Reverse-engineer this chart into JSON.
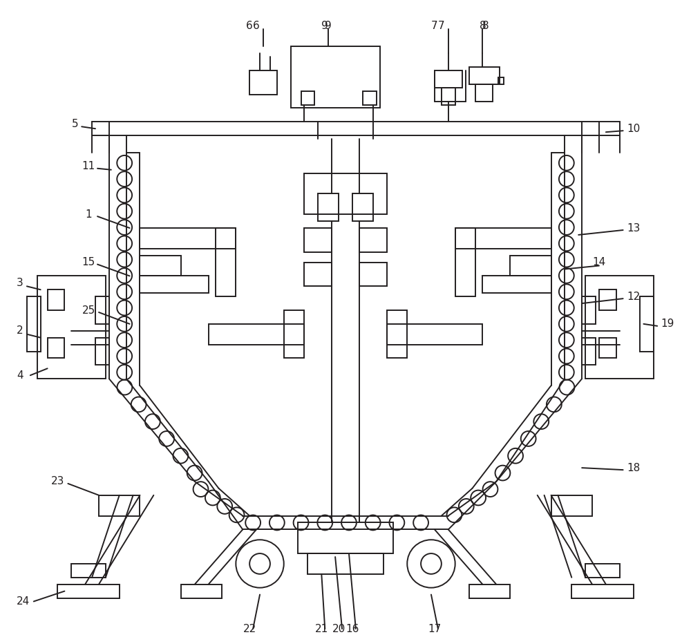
{
  "bg_color": "#ffffff",
  "line_color": "#231f20",
  "line_width": 1.4,
  "thin_lw": 1.0,
  "label_fs": 11
}
